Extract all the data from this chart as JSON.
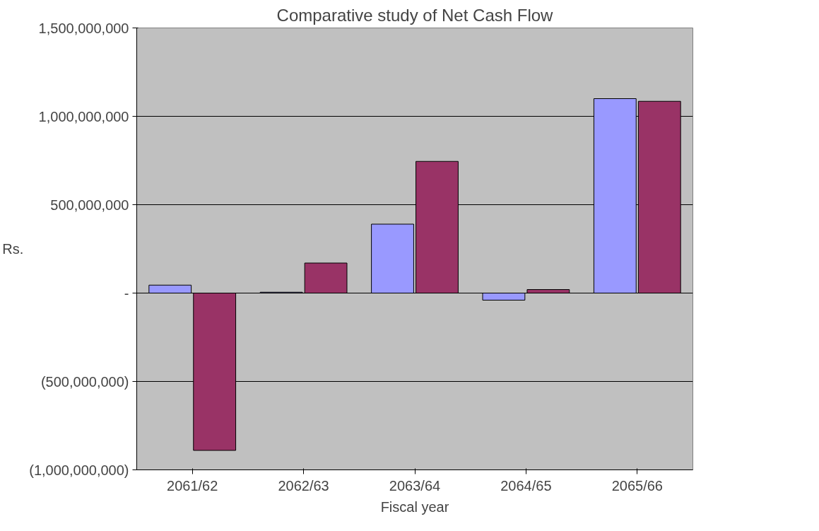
{
  "chart_data": {
    "type": "bar",
    "title": "Comparative study of Net Cash Flow",
    "xlabel": "Fiscal year",
    "ylabel": "Rs.",
    "categories": [
      "2061/62",
      "2062/63",
      "2063/64",
      "2064/65",
      "2065/66"
    ],
    "series": [
      {
        "color": "#9999ff",
        "values": [
          45000000,
          5000000,
          390000000,
          -40000000,
          1100000000
        ]
      },
      {
        "color": "#993366",
        "values": [
          -890000000,
          170000000,
          745000000,
          20000000,
          1085000000
        ]
      }
    ],
    "ylim": [
      -1000000000,
      1500000000
    ],
    "yticks": [
      {
        "value": -1000000000,
        "label": "(1,000,000,000)"
      },
      {
        "value": -500000000,
        "label": "(500,000,000)"
      },
      {
        "value": 0,
        "label": "-"
      },
      {
        "value": 500000000,
        "label": "500,000,000"
      },
      {
        "value": 1000000000,
        "label": "1,000,000,000"
      },
      {
        "value": 1500000000,
        "label": "1,500,000,000"
      }
    ],
    "grid": "y"
  }
}
